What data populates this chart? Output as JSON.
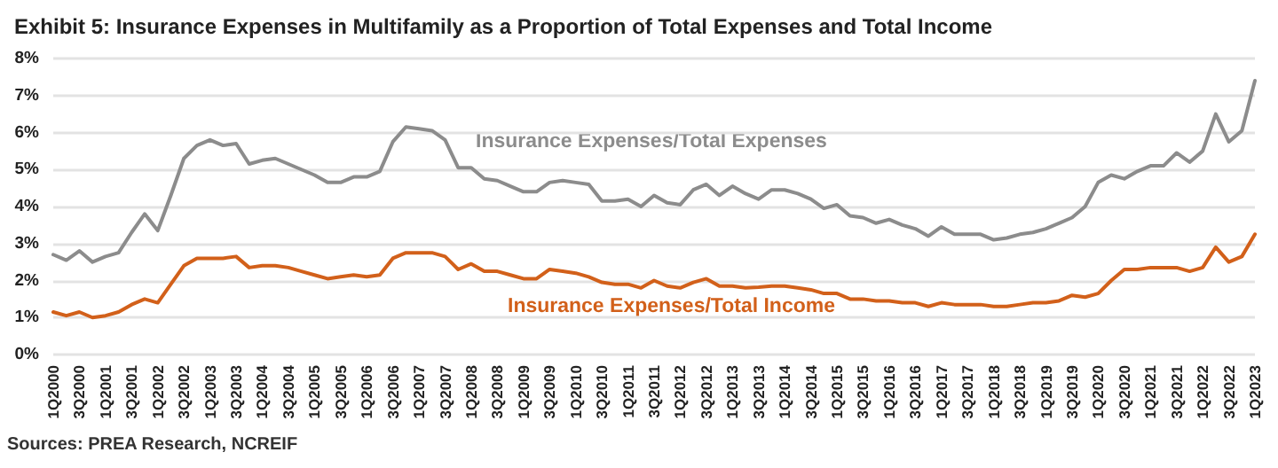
{
  "chart_data": {
    "type": "line",
    "title": "Exhibit 5: Insurance Expenses in Multifamily as a Proportion of Total Expenses and Total Income",
    "categories": [
      "1Q2000",
      null,
      "3Q2000",
      null,
      "1Q2001",
      null,
      "3Q2001",
      null,
      "1Q2002",
      null,
      "3Q2002",
      null,
      "1Q2003",
      null,
      "3Q2003",
      null,
      "1Q2004",
      null,
      "3Q2004",
      null,
      "1Q2005",
      null,
      "3Q2005",
      null,
      "1Q2006",
      null,
      "3Q2006",
      null,
      "1Q2007",
      null,
      "3Q2007",
      null,
      "1Q2008",
      null,
      "3Q2008",
      null,
      "1Q2009",
      null,
      "3Q2009",
      null,
      "1Q2010",
      null,
      "3Q2010",
      null,
      "1Q2011",
      null,
      "3Q2011",
      null,
      "1Q2012",
      null,
      "3Q2012",
      null,
      "1Q2013",
      null,
      "3Q2013",
      null,
      "1Q2014",
      null,
      "3Q2014",
      null,
      "1Q2015",
      null,
      "3Q2015",
      null,
      "1Q2016",
      null,
      "3Q2016",
      null,
      "1Q2017",
      null,
      "3Q2017",
      null,
      "1Q2018",
      null,
      "3Q2018",
      null,
      "1Q2019",
      null,
      "3Q2019",
      null,
      "1Q2020",
      null,
      "3Q2020",
      null,
      "1Q2021",
      null,
      "3Q2021",
      null,
      "1Q2022",
      null,
      "3Q2022",
      null,
      "1Q2023"
    ],
    "series": [
      {
        "name": "Insurance Expenses/Total Expenses",
        "color": "#8c8c8c",
        "values": [
          2.7,
          2.55,
          2.8,
          2.5,
          2.65,
          2.75,
          3.3,
          3.8,
          3.35,
          4.3,
          5.3,
          5.65,
          5.8,
          5.65,
          5.7,
          5.15,
          5.25,
          5.3,
          5.15,
          5.0,
          4.85,
          4.65,
          4.65,
          4.8,
          4.8,
          4.95,
          5.75,
          6.15,
          6.1,
          6.05,
          5.8,
          5.05,
          5.05,
          4.75,
          4.7,
          4.55,
          4.4,
          4.4,
          4.65,
          4.7,
          4.65,
          4.6,
          4.15,
          4.15,
          4.2,
          4.0,
          4.3,
          4.1,
          4.05,
          4.45,
          4.6,
          4.3,
          4.55,
          4.35,
          4.2,
          4.45,
          4.45,
          4.35,
          4.2,
          3.95,
          4.05,
          3.75,
          3.7,
          3.55,
          3.65,
          3.5,
          3.4,
          3.2,
          3.45,
          3.25,
          3.25,
          3.25,
          3.1,
          3.15,
          3.25,
          3.3,
          3.4,
          3.55,
          3.7,
          4.0,
          4.65,
          4.85,
          4.75,
          4.95,
          5.1,
          5.1,
          5.45,
          5.2,
          5.5,
          6.5,
          5.75,
          6.05,
          7.4
        ]
      },
      {
        "name": "Insurance Expenses/Total Income",
        "color": "#d2601a",
        "values": [
          1.15,
          1.05,
          1.15,
          1.0,
          1.05,
          1.15,
          1.35,
          1.5,
          1.4,
          1.9,
          2.4,
          2.6,
          2.6,
          2.6,
          2.65,
          2.35,
          2.4,
          2.4,
          2.35,
          2.25,
          2.15,
          2.05,
          2.1,
          2.15,
          2.1,
          2.15,
          2.6,
          2.75,
          2.75,
          2.75,
          2.65,
          2.3,
          2.45,
          2.25,
          2.25,
          2.15,
          2.05,
          2.05,
          2.3,
          2.25,
          2.2,
          2.1,
          1.95,
          1.9,
          1.9,
          1.8,
          2.0,
          1.85,
          1.8,
          1.95,
          2.05,
          1.85,
          1.85,
          1.8,
          1.82,
          1.85,
          1.85,
          1.8,
          1.75,
          1.65,
          1.65,
          1.5,
          1.5,
          1.45,
          1.45,
          1.4,
          1.4,
          1.3,
          1.4,
          1.35,
          1.35,
          1.35,
          1.3,
          1.3,
          1.35,
          1.4,
          1.4,
          1.45,
          1.6,
          1.55,
          1.65,
          2.0,
          2.3,
          2.3,
          2.35,
          2.35,
          2.35,
          2.25,
          2.35,
          2.9,
          2.5,
          2.65,
          3.25
        ]
      }
    ],
    "ylim": [
      0,
      8
    ],
    "yticks": [
      {
        "value": 0,
        "label": "0%"
      },
      {
        "value": 1,
        "label": "1%"
      },
      {
        "value": 2,
        "label": "2%"
      },
      {
        "value": 3,
        "label": "3%"
      },
      {
        "value": 4,
        "label": "4%"
      },
      {
        "value": 5,
        "label": "5%"
      },
      {
        "value": 6,
        "label": "6%"
      },
      {
        "value": 7,
        "label": "7%"
      },
      {
        "value": 8,
        "label": "8%"
      }
    ],
    "grid": "y",
    "legend": false,
    "marker": "none",
    "line_style": "solid",
    "annotations": [
      "Sources: PREA Research, NCREIF"
    ]
  }
}
